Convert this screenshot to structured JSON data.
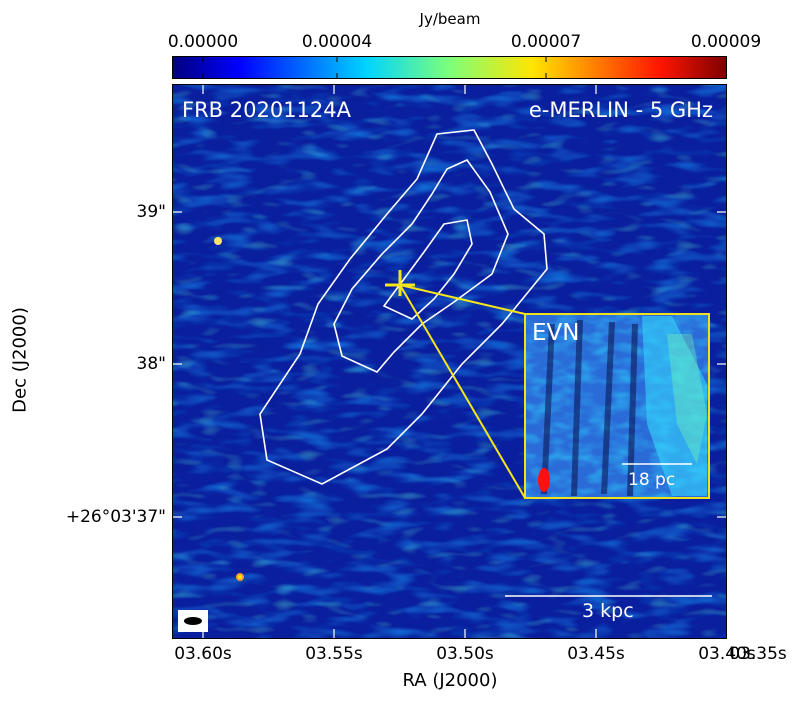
{
  "colorbar": {
    "unit": "Jy/beam",
    "tick_labels": [
      "0.00000",
      "0.00004",
      "0.00007",
      "0.00009"
    ],
    "colormap": "jet"
  },
  "image": {
    "source_label": "FRB 20201124A",
    "instrument_label": "e-MERLIN - 5 GHz",
    "scale_bar_label": "3 kpc",
    "background_color": "#0a1f9e"
  },
  "inset": {
    "label": "EVN",
    "scale_bar_label": "18 pc",
    "border_color": "#f0e11c"
  },
  "axes": {
    "xlabel": "RA (J2000)",
    "ylabel": "Dec (J2000)",
    "x_tick_labels": [
      "03.60s",
      "03.55s",
      "03.50s",
      "03.45s",
      "03.40s",
      "03.35s"
    ],
    "y_tick_labels": [
      "39\"",
      "38\"",
      "+26°03'37\""
    ]
  },
  "colors": {
    "contour": "#ffffff",
    "marker": "#f5e51c",
    "inset_beam": "#ff1010"
  }
}
